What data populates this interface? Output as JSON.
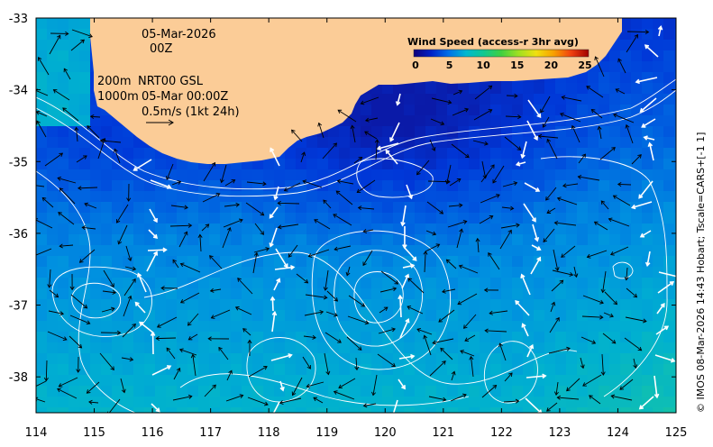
{
  "date_line": "05-Mar-2026",
  "time_line": "00Z",
  "contour_label_1": "200m",
  "contour_label_2": "1000m",
  "product_line": "NRT00 GSL",
  "analysis_time": "05-Mar 00:00Z",
  "scale_label": "0.5m/s (1kt 24h)",
  "colorbar": {
    "title": "Wind Speed (access-r 3hr avg)",
    "ticks": [
      "0",
      "5",
      "10",
      "15",
      "20",
      "25"
    ],
    "colors": [
      "#10007a",
      "#0022c8",
      "#0070e8",
      "#00b8d0",
      "#10c890",
      "#40d040",
      "#a0e020",
      "#f0e010",
      "#f8a000",
      "#f04010",
      "#a00000"
    ]
  },
  "axes": {
    "x_ticks": [
      "114",
      "115",
      "116",
      "117",
      "118",
      "119",
      "120",
      "121",
      "122",
      "123",
      "124",
      "125"
    ],
    "y_ticks": [
      "-33",
      "-34",
      "-35",
      "-36",
      "-37",
      "-38"
    ],
    "x_range": [
      114,
      125
    ],
    "y_range": [
      -38.5,
      -33
    ]
  },
  "credit": "© IMOS 08-Mar-2026 14:43 Hobart; Tscale=CARS+[-1 1]",
  "colors": {
    "land": "#fbcc97",
    "arrow_white": "#ffffff",
    "arrow_black": "#000000",
    "contour": "#ffffff"
  }
}
